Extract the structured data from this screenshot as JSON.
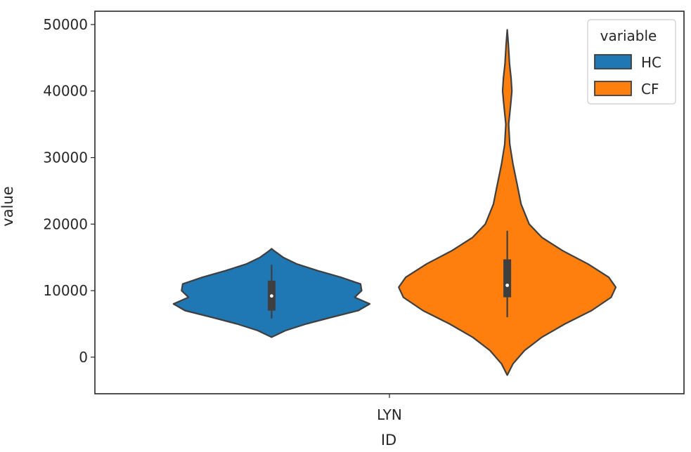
{
  "chart_data": {
    "type": "violin",
    "xlabel": "ID",
    "ylabel": "value",
    "categories": [
      "LYN"
    ],
    "ylim": [
      -5500,
      52000
    ],
    "yticks": [
      0,
      10000,
      20000,
      30000,
      40000,
      50000
    ],
    "legend": {
      "title": "variable",
      "placement": "top-right"
    },
    "grid": false,
    "series": [
      {
        "name": "HC",
        "color": "#1f77b4",
        "category": "LYN",
        "density": [
          [
            3000,
            0.0
          ],
          [
            4000,
            0.12
          ],
          [
            5000,
            0.3
          ],
          [
            6000,
            0.52
          ],
          [
            7000,
            0.75
          ],
          [
            8000,
            0.85
          ],
          [
            9000,
            0.72
          ],
          [
            10000,
            0.78
          ],
          [
            11000,
            0.77
          ],
          [
            12000,
            0.6
          ],
          [
            13000,
            0.4
          ],
          [
            14000,
            0.22
          ],
          [
            15000,
            0.1
          ],
          [
            16000,
            0.02
          ],
          [
            16300,
            0.0
          ]
        ],
        "box": {
          "q1": 7000,
          "median": 9200,
          "q3": 11500,
          "whisker_low": 5800,
          "whisker_high": 13900
        }
      },
      {
        "name": "CF",
        "color": "#ff7f0e",
        "category": "LYN",
        "density": [
          [
            -2700,
            0.0
          ],
          [
            -1000,
            0.05
          ],
          [
            1000,
            0.15
          ],
          [
            3000,
            0.3
          ],
          [
            5000,
            0.5
          ],
          [
            7000,
            0.73
          ],
          [
            9000,
            0.9
          ],
          [
            10500,
            0.94
          ],
          [
            12000,
            0.88
          ],
          [
            14000,
            0.7
          ],
          [
            16000,
            0.48
          ],
          [
            18000,
            0.3
          ],
          [
            20000,
            0.19
          ],
          [
            23000,
            0.12
          ],
          [
            26000,
            0.085
          ],
          [
            29000,
            0.05
          ],
          [
            32000,
            0.022
          ],
          [
            35000,
            0.012
          ],
          [
            38000,
            0.03
          ],
          [
            40000,
            0.04
          ],
          [
            42000,
            0.033
          ],
          [
            44000,
            0.02
          ],
          [
            47000,
            0.01
          ],
          [
            49200,
            0.0
          ]
        ],
        "box": {
          "q1": 9000,
          "median": 10800,
          "q3": 14700,
          "whisker_low": 6000,
          "whisker_high": 19000
        }
      }
    ]
  }
}
